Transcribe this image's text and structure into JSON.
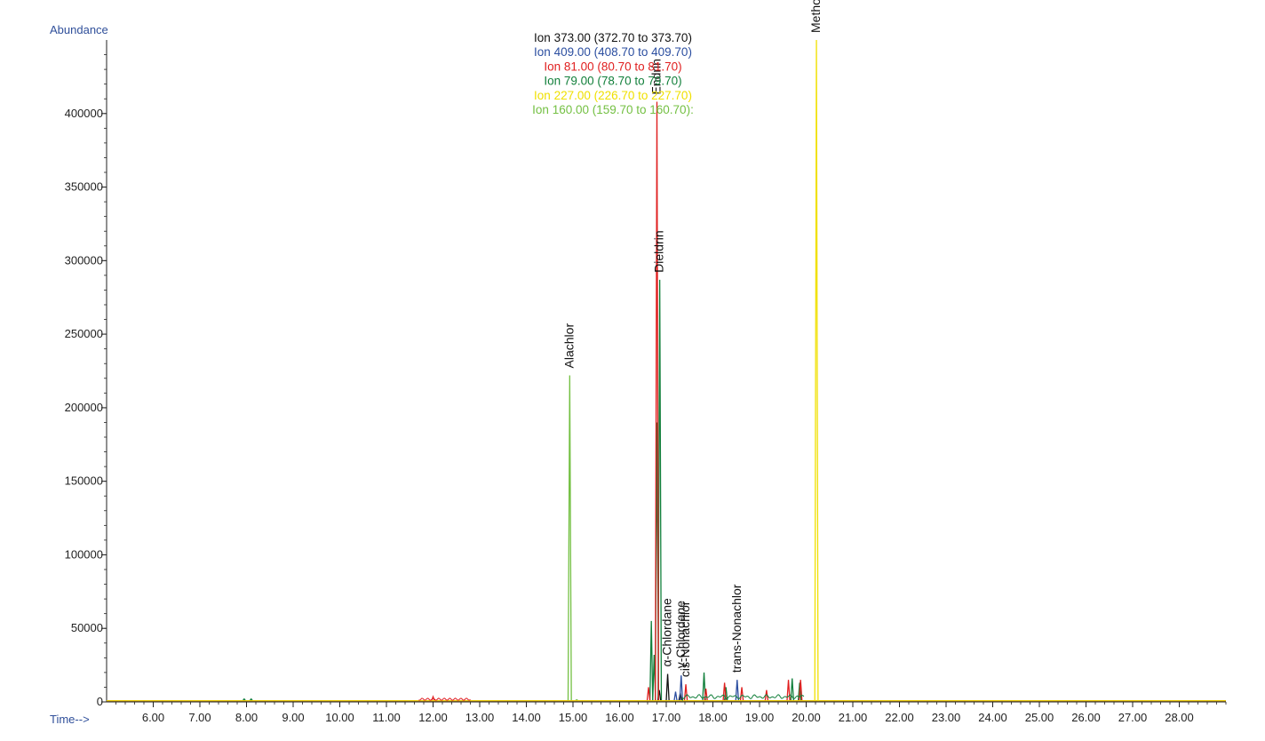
{
  "chart_data": {
    "type": "line",
    "ylabel": "Abundance",
    "xlabel": "Time-->",
    "xlim": [
      5.0,
      29.0
    ],
    "ylim": [
      0,
      450000
    ],
    "x_ticks": [
      "6.00",
      "7.00",
      "8.00",
      "9.00",
      "10.00",
      "11.00",
      "12.00",
      "13.00",
      "14.00",
      "15.00",
      "16.00",
      "17.00",
      "18.00",
      "19.00",
      "20.00",
      "21.00",
      "22.00",
      "23.00",
      "24.00",
      "25.00",
      "26.00",
      "27.00",
      "28.00"
    ],
    "y_ticks": [
      "0",
      "50000",
      "100000",
      "150000",
      "200000",
      "250000",
      "300000",
      "350000",
      "400000"
    ],
    "series": [
      {
        "name": "Ion 373.00 (372.70 to 373.70)",
        "color": "#111111",
        "peaks": [
          [
            17.03,
            19000
          ],
          [
            16.85,
            8000
          ],
          [
            17.3,
            6000
          ]
        ]
      },
      {
        "name": "Ion 409.00 (408.70 to 409.70)",
        "color": "#2b4ea0",
        "peaks": [
          [
            17.32,
            18000
          ],
          [
            18.52,
            15000
          ],
          [
            17.2,
            7000
          ]
        ]
      },
      {
        "name": "Ion  81.00 (80.70 to 81.70)",
        "color": "#e02020",
        "peaks": [
          [
            16.8,
            408000
          ],
          [
            16.62,
            10000
          ],
          [
            17.42,
            12000
          ],
          [
            17.85,
            9000
          ],
          [
            18.25,
            13000
          ],
          [
            18.62,
            10000
          ],
          [
            19.15,
            8000
          ],
          [
            19.62,
            15000
          ],
          [
            19.88,
            15000
          ],
          [
            12.0,
            3500
          ]
        ]
      },
      {
        "name": "Ion  79.00 (78.70 to 79.70)",
        "color": "#13803c",
        "peaks": [
          [
            16.86,
            287000
          ],
          [
            16.8,
            190000
          ],
          [
            16.68,
            55000
          ],
          [
            16.74,
            32000
          ],
          [
            17.81,
            20000
          ],
          [
            18.28,
            10000
          ],
          [
            19.7,
            16000
          ],
          [
            19.86,
            13000
          ],
          [
            7.95,
            2000
          ],
          [
            8.1,
            2000
          ]
        ]
      },
      {
        "name": "Ion 227.00 (226.70 to 227.70)",
        "color": "#f0e000",
        "peaks": [
          [
            20.22,
            450000
          ]
        ]
      },
      {
        "name": "Ion 160.00 (159.70 to 160.70):",
        "color": "#74c043",
        "peaks": [
          [
            14.93,
            222000
          ],
          [
            15.08,
            1500
          ]
        ]
      }
    ],
    "annotations": [
      {
        "text": "Alachlor",
        "x": 14.93,
        "y": 222000
      },
      {
        "text": "Endrin",
        "x": 16.8,
        "y": 408000
      },
      {
        "text": "Dieldrin",
        "x": 16.86,
        "y": 287000
      },
      {
        "text": "α-Chlordane",
        "x": 17.03,
        "y": 19000
      },
      {
        "text": "γ-Chlordane",
        "x": 17.32,
        "y": 18000
      },
      {
        "text": "cis-Nonachlor",
        "x": 17.42,
        "y": 12000
      },
      {
        "text": "trans-Nonachlor",
        "x": 18.52,
        "y": 15000
      },
      {
        "text": "Methoxychlor",
        "x": 20.22,
        "y": 450000
      }
    ]
  }
}
